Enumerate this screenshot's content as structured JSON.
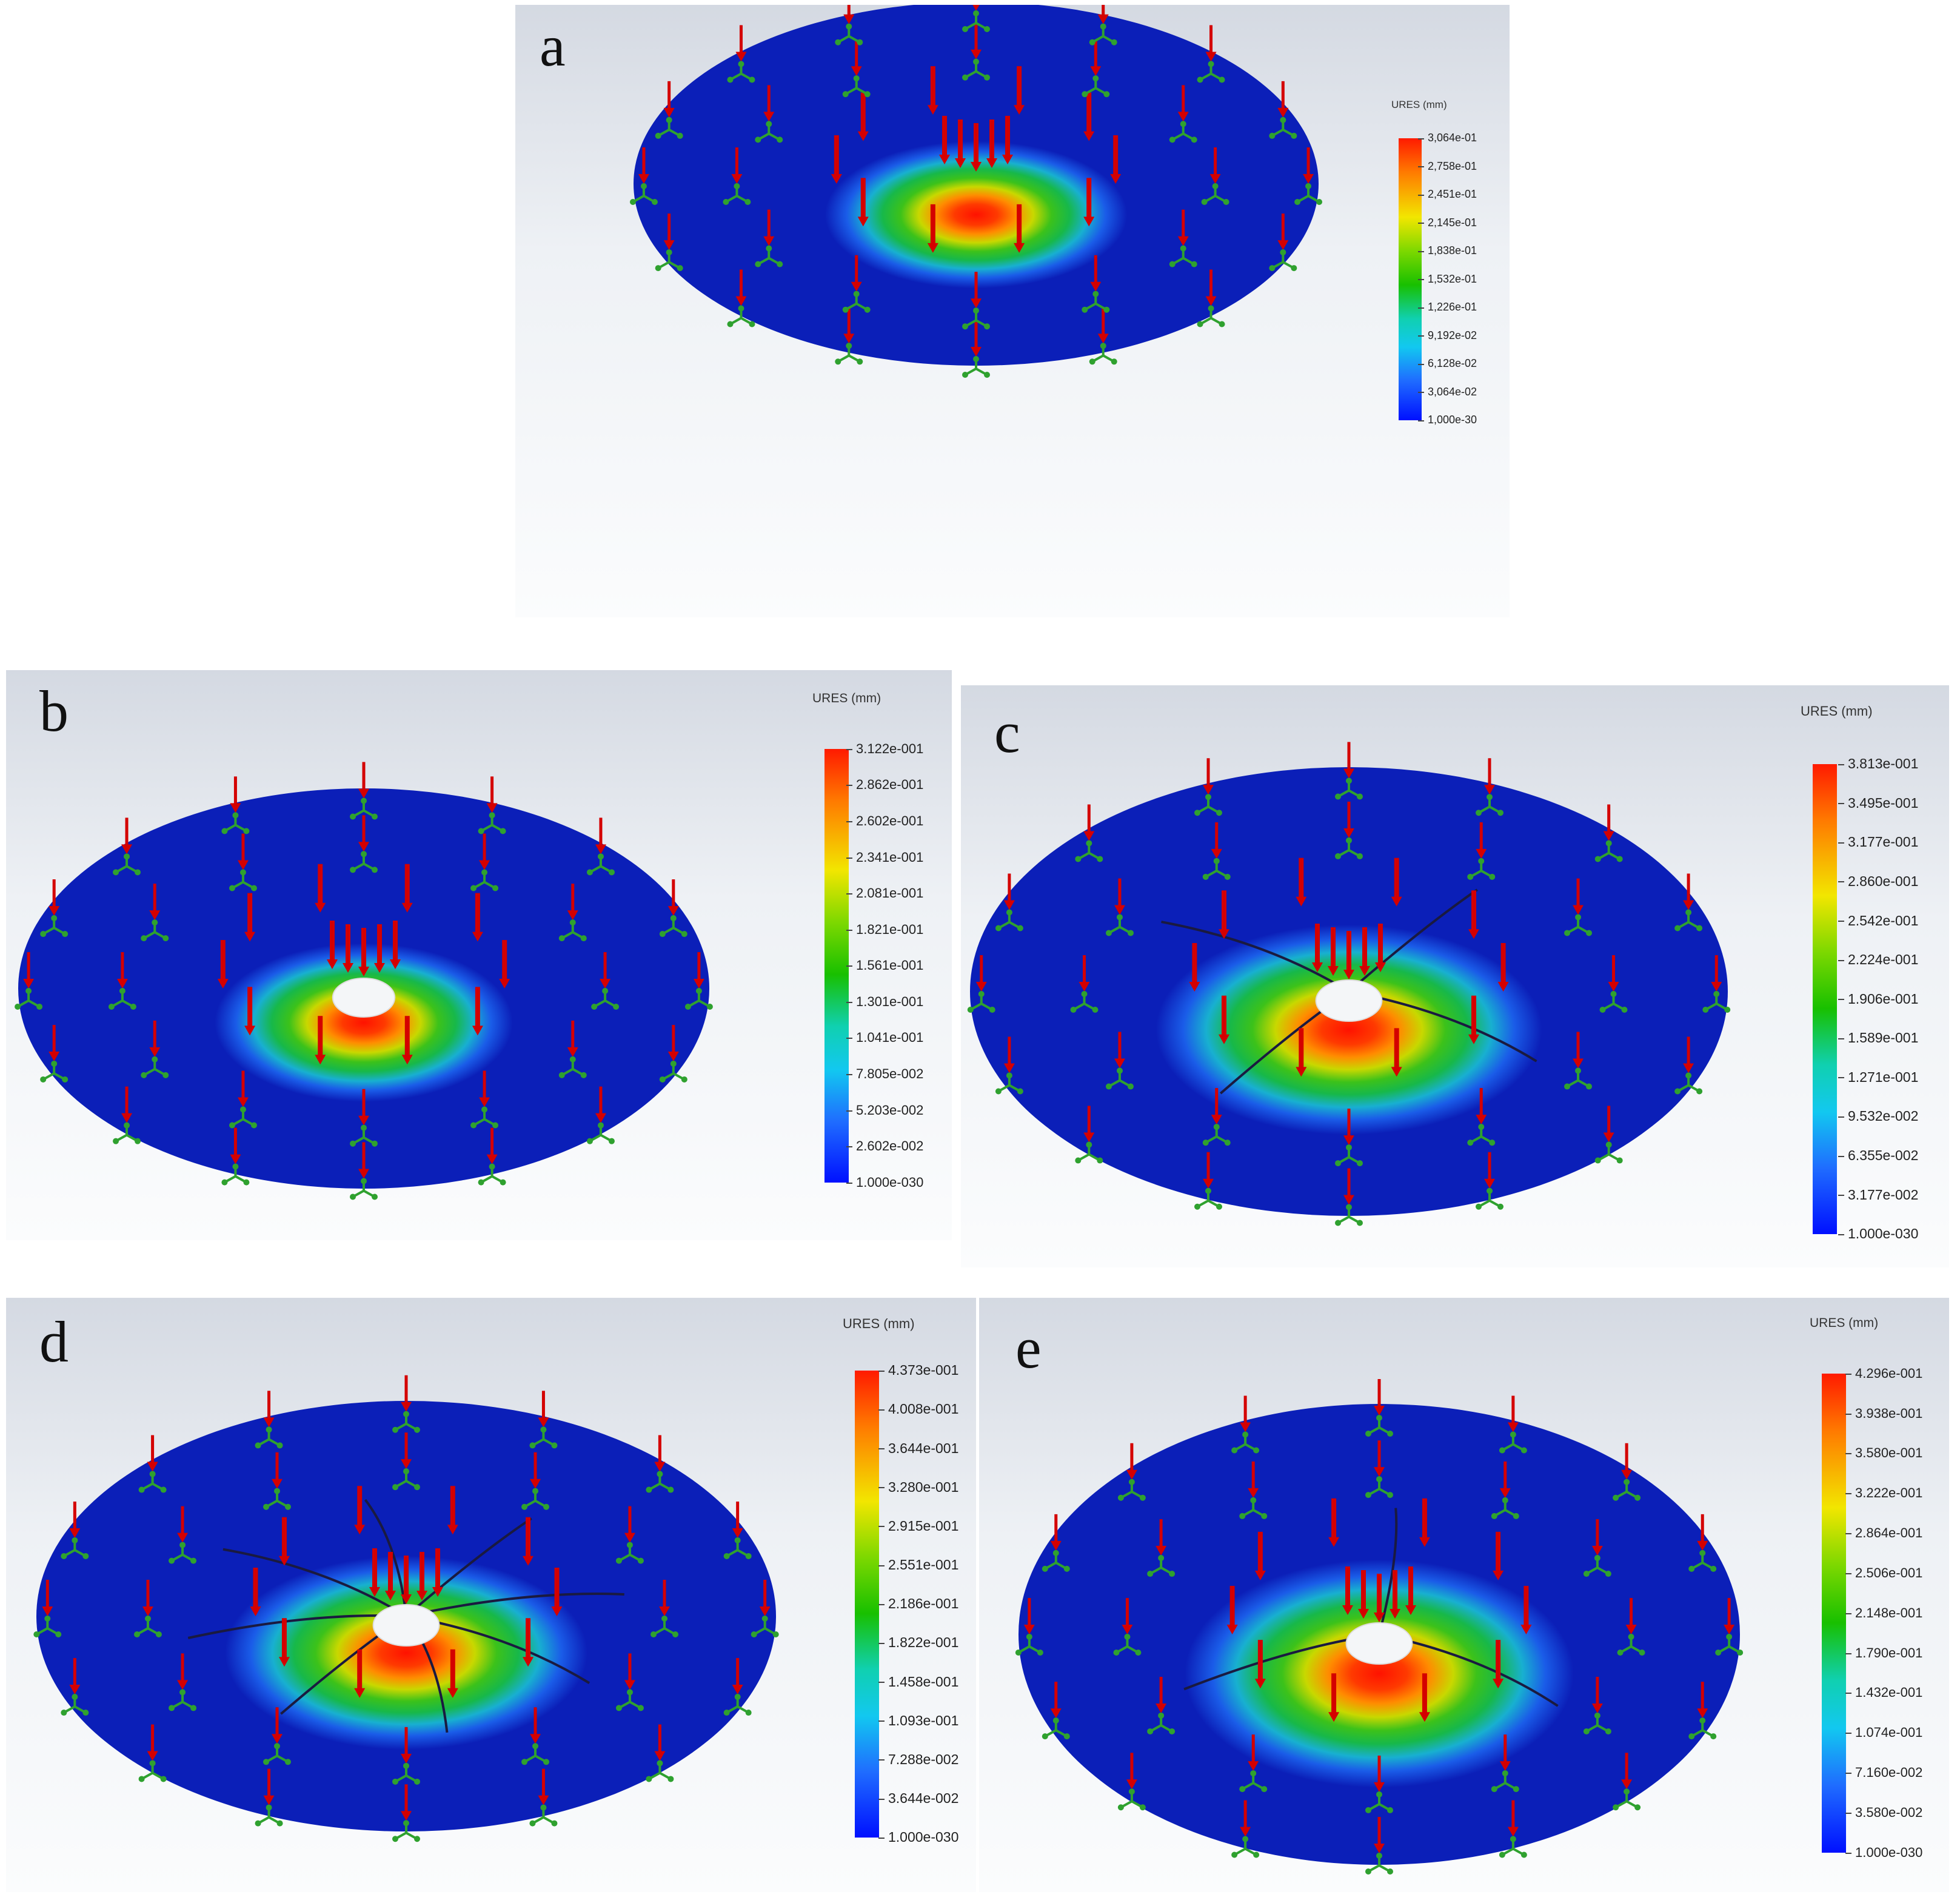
{
  "colors": {
    "plate_blue": "#0b1fb8",
    "arrow_red": "#d40000",
    "fixture_green": "#2fa12f"
  },
  "panels": [
    {
      "id": "a",
      "letter": "a",
      "legend_title": "URES (mm)",
      "legend_values": [
        "3,064e-01",
        "2,758e-01",
        "2,451e-01",
        "2,145e-01",
        "1,838e-01",
        "1,532e-01",
        "1,226e-01",
        "9,192e-02",
        "6,128e-02",
        "3,064e-02",
        "1,000e-30"
      ],
      "has_hole": false,
      "cracks": 0
    },
    {
      "id": "b",
      "letter": "b",
      "legend_title": "URES (mm)",
      "legend_values": [
        "3.122e-001",
        "2.862e-001",
        "2.602e-001",
        "2.341e-001",
        "2.081e-001",
        "1.821e-001",
        "1.561e-001",
        "1.301e-001",
        "1.041e-001",
        "7.805e-002",
        "5.203e-002",
        "2.602e-002",
        "1.000e-030"
      ],
      "has_hole": true,
      "cracks": 0
    },
    {
      "id": "c",
      "letter": "c",
      "legend_title": "URES (mm)",
      "legend_values": [
        "3.813e-001",
        "3.495e-001",
        "3.177e-001",
        "2.860e-001",
        "2.542e-001",
        "2.224e-001",
        "1.906e-001",
        "1.589e-001",
        "1.271e-001",
        "9.532e-002",
        "6.355e-002",
        "3.177e-002",
        "1.000e-030"
      ],
      "has_hole": true,
      "cracks": 4
    },
    {
      "id": "d",
      "letter": "d",
      "legend_title": "URES (mm)",
      "legend_values": [
        "4.373e-001",
        "4.008e-001",
        "3.644e-001",
        "3.280e-001",
        "2.915e-001",
        "2.551e-001",
        "2.186e-001",
        "1.822e-001",
        "1.458e-001",
        "1.093e-001",
        "7.288e-002",
        "3.644e-002",
        "1.000e-030"
      ],
      "has_hole": true,
      "cracks": 8
    },
    {
      "id": "e",
      "letter": "e",
      "legend_title": "URES (mm)",
      "legend_values": [
        "4.296e-001",
        "3.938e-001",
        "3.580e-001",
        "3.222e-001",
        "2.864e-001",
        "2.506e-001",
        "2.148e-001",
        "1.790e-001",
        "1.432e-001",
        "1.074e-001",
        "7.160e-002",
        "3.580e-002",
        "1.000e-030"
      ],
      "has_hole": true,
      "cracks": 3
    }
  ]
}
